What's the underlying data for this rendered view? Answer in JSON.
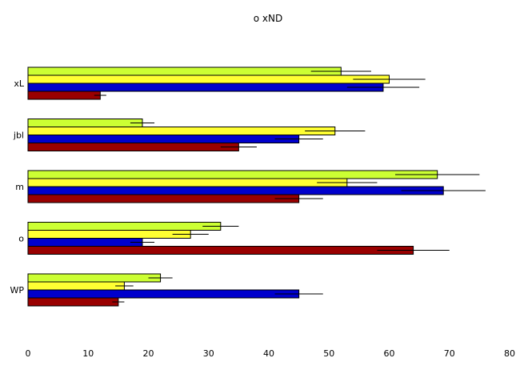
{
  "chart_data": {
    "type": "bar",
    "orientation": "horizontal",
    "title": "o xND",
    "xlabel": "",
    "ylabel": "",
    "xlim": [
      0,
      80
    ],
    "x_ticks": [
      0,
      10,
      20,
      30,
      40,
      50,
      60,
      70,
      80
    ],
    "grid": false,
    "legend": "none",
    "categories": [
      "xL",
      "jbl",
      "m",
      "o",
      "WP"
    ],
    "series": [
      {
        "color": "#ccff33",
        "values": [
          52,
          19,
          68,
          32,
          22
        ],
        "errors": [
          5,
          2,
          7,
          3,
          2
        ]
      },
      {
        "color": "#ffff33",
        "values": [
          60,
          51,
          53,
          27,
          16
        ],
        "errors": [
          6,
          5,
          5,
          3,
          1.5
        ]
      },
      {
        "color": "#0000cc",
        "values": [
          59,
          45,
          69,
          19,
          45
        ],
        "errors": [
          6,
          4,
          7,
          2,
          4
        ]
      },
      {
        "color": "#990000",
        "values": [
          12,
          35,
          45,
          64,
          15
        ],
        "errors": [
          1,
          3,
          4,
          6,
          1
        ]
      }
    ]
  }
}
